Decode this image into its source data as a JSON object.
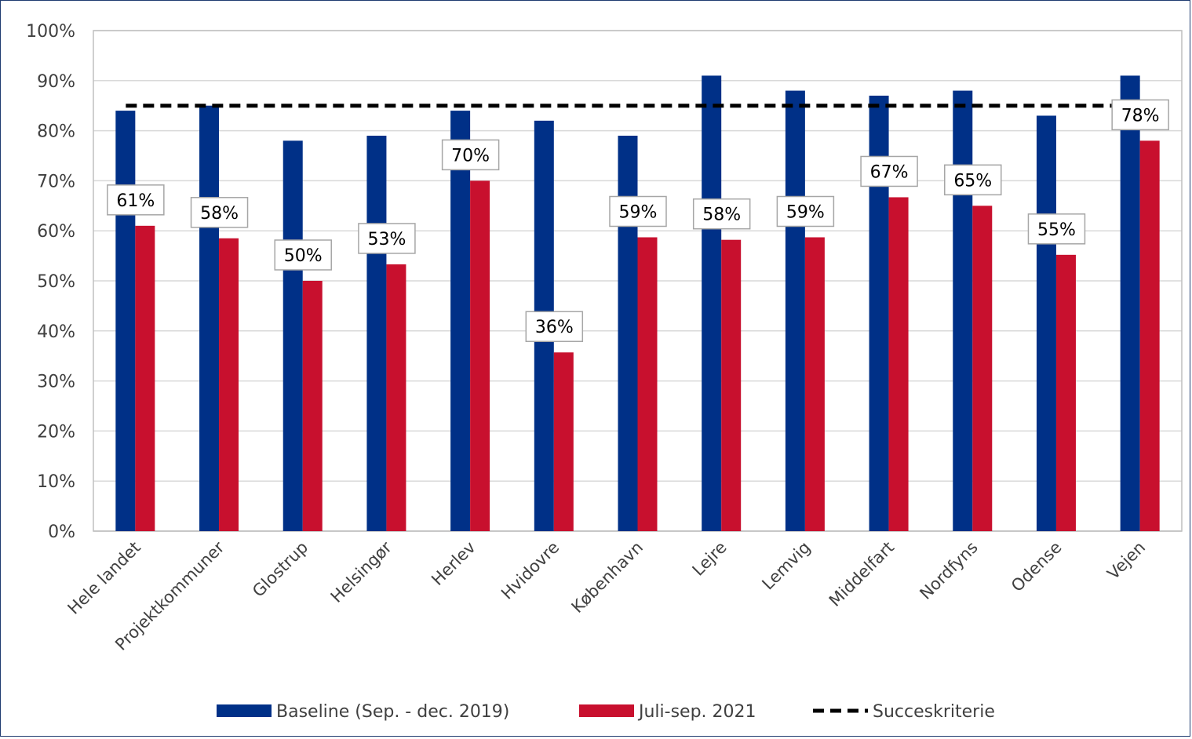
{
  "colors": {
    "baseline": "#003087",
    "current": "#c8102e",
    "target_line": "#000000",
    "grid": "#d9d9d9",
    "axis": "#bfbfbf"
  },
  "chart_data": {
    "type": "bar",
    "categories": [
      "Hele landet",
      "Projektkommuner",
      "Glostrup",
      "Helsingør",
      "Herlev",
      "Hvidovre",
      "København",
      "Lejre",
      "Lemvig",
      "Middelfart",
      "Nordfyns",
      "Odense",
      "Vejen"
    ],
    "series": [
      {
        "name": "Baseline (Sep. - dec. 2019)",
        "values": [
          84,
          85,
          78,
          79,
          84,
          82,
          79,
          91,
          88,
          87,
          88,
          83,
          91
        ]
      },
      {
        "name": "Juli-sep. 2021",
        "values": [
          61,
          58.5,
          50,
          53.3,
          70,
          35.7,
          58.7,
          58.2,
          58.7,
          66.7,
          65,
          55.2,
          78
        ],
        "data_labels": [
          "61%",
          "58%",
          "50%",
          "53%",
          "70%",
          "36%",
          "59%",
          "58%",
          "59%",
          "67%",
          "65%",
          "55%",
          "78%"
        ]
      }
    ],
    "reference_line": {
      "name": "Succeskriterie",
      "value": 85,
      "style": "dashed"
    },
    "ylim": [
      0,
      100
    ],
    "yticks": [
      "0%",
      "10%",
      "20%",
      "30%",
      "40%",
      "50%",
      "60%",
      "70%",
      "80%",
      "90%",
      "100%"
    ],
    "grid": true,
    "legend_position": "bottom",
    "title": "",
    "xlabel": "",
    "ylabel": ""
  }
}
